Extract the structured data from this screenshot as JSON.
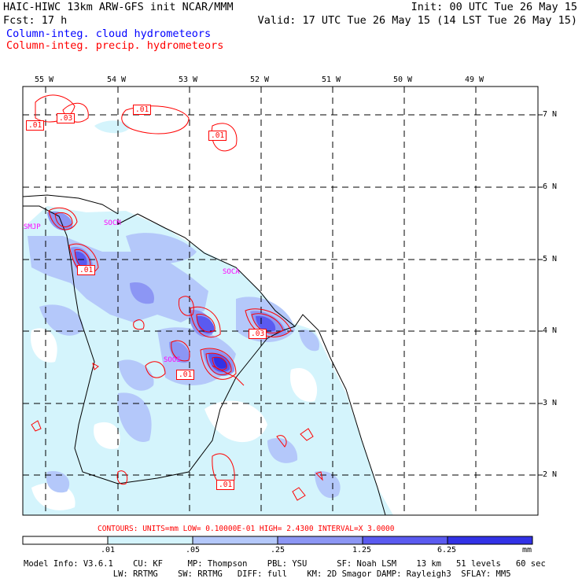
{
  "header": {
    "line1_left": "HAIC-HIWC 13km ARW-GFS init   NCAR/MMM",
    "line1_right": "Init: 00 UTC Tue 26 May 15",
    "line2_left": "Fcst:   17 h",
    "line2_right": "Valid: 17 UTC Tue 26 May 15 (14 LST Tue 26 May 15)",
    "field_cloud": "Column-integ. cloud hydrometeors",
    "field_precip": "Column-integ. precip. hydrometeors"
  },
  "map": {
    "lon_labels": [
      "55 W",
      "54 W",
      "53 W",
      "52 W",
      "51 W",
      "50 W",
      "49 W"
    ],
    "lat_labels": [
      "7 N",
      "6 N",
      "5 N",
      "4 N",
      "3 N",
      "2 N"
    ],
    "stations": [
      "SMJP",
      "SOCM",
      "SOCA",
      "SOOS"
    ],
    "contour_labels": [
      ".01",
      ".03",
      ".01",
      ".01",
      ".01",
      ".03",
      ".01",
      ".01"
    ],
    "colors": {
      "frame": "#000000",
      "cloud_1": "#d4f4fc",
      "cloud_2": "#b4c8fa",
      "cloud_3": "#8c96f4",
      "cloud_4": "#5a5af0",
      "cloud_5": "#3232e6",
      "contour": "#ff0000",
      "station": "#ff00ff"
    }
  },
  "contour_info": "CONTOURS:  UNITS=mm  LOW= 0.10000E-01  HIGH=  2.4300    INTERVAL=X  3.0000",
  "colorbar": {
    "ticks": [
      ".01",
      ".05",
      ".25",
      "1.25",
      "6.25"
    ],
    "units": "mm",
    "colors": [
      "#ffffff",
      "#d4f4fc",
      "#b4c8fa",
      "#8c96f4",
      "#5a5af0",
      "#3232e6"
    ]
  },
  "model_info": {
    "line1": "Model Info: V3.6.1    CU: KF     MP: Thompson    PBL: YSU      SF: Noah LSM    13 km   51 levels   60 sec",
    "line2": "                  LW: RRTMG    SW: RRTMG   DIFF: full    KM: 2D Smagor DAMP: Rayleigh3  SFLAY: MM5"
  }
}
